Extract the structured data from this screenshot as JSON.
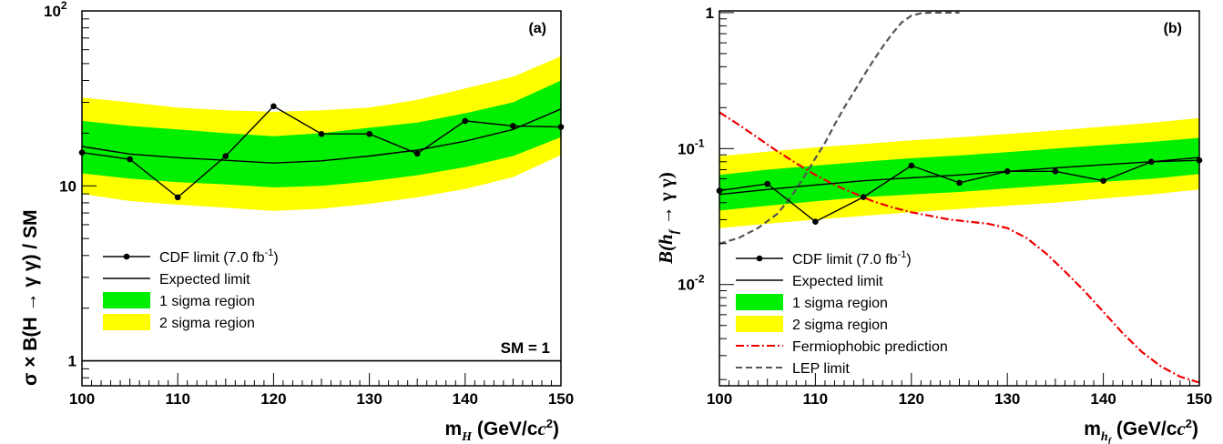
{
  "chart_data": [
    {
      "panel": "(a)",
      "type": "line",
      "xlabel_main": "m",
      "xlabel_sub": "H",
      "xlabel_units": " (GeV/c",
      "xlabel_sup": "2",
      "xlabel_close": ")",
      "ylabel": "σ × B(H → γ γ) / SM",
      "xlim": [
        100,
        150
      ],
      "ylim": [
        0.72,
        100
      ],
      "yscale": "log",
      "x_ticks": [
        100,
        110,
        120,
        130,
        140,
        150
      ],
      "y_ticks": [
        {
          "value": 1,
          "label": "1"
        },
        {
          "value": 10,
          "label": "10"
        },
        {
          "value": 100,
          "label": "10",
          "sup": "2"
        }
      ],
      "annotation": "SM = 1",
      "sm_line": 1,
      "x": [
        100,
        105,
        110,
        115,
        120,
        125,
        130,
        135,
        140,
        145,
        150
      ],
      "observed": [
        15.5,
        14.2,
        8.6,
        14.8,
        28.5,
        19.8,
        19.8,
        15.3,
        23.5,
        22.0,
        21.7
      ],
      "expected": [
        16.8,
        15.2,
        14.5,
        14.0,
        13.5,
        13.9,
        14.8,
        16.0,
        18.0,
        21.0,
        27.5
      ],
      "band1_lo": [
        11.8,
        11.0,
        10.5,
        10.2,
        9.8,
        10.0,
        10.6,
        11.5,
        12.8,
        14.8,
        19.0
      ],
      "band1_hi": [
        23.5,
        22.0,
        21.0,
        20.0,
        19.2,
        20.0,
        21.5,
        23.0,
        26.0,
        30.0,
        40.0
      ],
      "band2_lo": [
        9.0,
        8.2,
        7.8,
        7.5,
        7.2,
        7.4,
        7.9,
        8.6,
        9.6,
        11.2,
        15.0
      ],
      "band2_hi": [
        32.0,
        30.0,
        28.0,
        27.0,
        26.5,
        27.0,
        28.0,
        31.0,
        36.0,
        42.0,
        55.0
      ],
      "legend": [
        {
          "label": "CDF limit (7.0 fb",
          "sup": "-1",
          "close": ")",
          "kind": "observed"
        },
        {
          "label": "Expected limit",
          "kind": "expected"
        },
        {
          "label": "1 sigma region",
          "kind": "band1"
        },
        {
          "label": "2 sigma region",
          "kind": "band2"
        }
      ]
    },
    {
      "panel": "(b)",
      "type": "line",
      "xlabel_main": "m",
      "xlabel_sub": "h",
      "xlabel_subsub": "f",
      "xlabel_units": " (GeV/c",
      "xlabel_sup": "2",
      "xlabel_close": ")",
      "ylabel": "B(h",
      "ylabel_sub": "f",
      "ylabel_rest": " → γ γ)",
      "xlim": [
        100,
        150
      ],
      "ylim": [
        0.0018,
        1.03
      ],
      "yscale": "log",
      "x_ticks": [
        100,
        110,
        120,
        130,
        140,
        150
      ],
      "y_ticks": [
        {
          "value": 0.01,
          "label": "10",
          "sup": "-2"
        },
        {
          "value": 0.1,
          "label": "10",
          "sup": "-1"
        },
        {
          "value": 1,
          "label": "1"
        }
      ],
      "x": [
        100,
        105,
        110,
        115,
        120,
        125,
        130,
        135,
        140,
        145,
        150
      ],
      "observed": [
        0.049,
        0.055,
        0.029,
        0.044,
        0.075,
        0.056,
        0.068,
        0.068,
        0.058,
        0.08,
        0.082
      ],
      "expected": [
        0.046,
        0.05,
        0.054,
        0.058,
        0.061,
        0.064,
        0.068,
        0.072,
        0.076,
        0.08,
        0.086
      ],
      "band1_lo": [
        0.035,
        0.038,
        0.041,
        0.044,
        0.046,
        0.048,
        0.051,
        0.054,
        0.057,
        0.06,
        0.065
      ],
      "band1_hi": [
        0.064,
        0.07,
        0.075,
        0.08,
        0.085,
        0.089,
        0.094,
        0.1,
        0.106,
        0.112,
        0.12
      ],
      "band2_lo": [
        0.026,
        0.028,
        0.03,
        0.032,
        0.034,
        0.036,
        0.038,
        0.04,
        0.043,
        0.046,
        0.05
      ],
      "band2_hi": [
        0.088,
        0.095,
        0.102,
        0.108,
        0.115,
        0.121,
        0.128,
        0.136,
        0.145,
        0.155,
        0.168
      ],
      "fermiophobic": {
        "x": [
          100,
          102,
          104,
          106,
          108,
          110,
          112,
          114,
          116,
          118,
          120,
          122,
          124,
          126,
          128,
          130,
          132,
          134,
          136,
          138,
          140,
          142,
          144,
          146,
          148,
          150
        ],
        "y": [
          0.185,
          0.15,
          0.12,
          0.096,
          0.078,
          0.064,
          0.054,
          0.047,
          0.041,
          0.037,
          0.034,
          0.032,
          0.03,
          0.029,
          0.028,
          0.026,
          0.022,
          0.017,
          0.0125,
          0.009,
          0.0063,
          0.0044,
          0.0032,
          0.0025,
          0.0021,
          0.0019
        ]
      },
      "lep": {
        "x": [
          100,
          102,
          104,
          106,
          107,
          108,
          109,
          110,
          111,
          112,
          113,
          114,
          115,
          116,
          117,
          118,
          119,
          120,
          121,
          122,
          123,
          125
        ],
        "y": [
          0.02,
          0.022,
          0.026,
          0.033,
          0.04,
          0.05,
          0.065,
          0.085,
          0.11,
          0.15,
          0.2,
          0.26,
          0.34,
          0.44,
          0.56,
          0.7,
          0.85,
          0.95,
          0.99,
          1.0,
          1.0,
          1.0
        ]
      },
      "legend": [
        {
          "label": "CDF limit (7.0 fb",
          "sup": "-1",
          "close": ")",
          "kind": "observed"
        },
        {
          "label": "Expected limit",
          "kind": "expected"
        },
        {
          "label": "1 sigma region",
          "kind": "band1"
        },
        {
          "label": "2 sigma region",
          "kind": "band2"
        },
        {
          "label": "Fermiophobic prediction",
          "kind": "fermiophobic"
        },
        {
          "label": "LEP limit",
          "kind": "lep"
        }
      ]
    }
  ],
  "colors": {
    "band1": "#00ee00",
    "band2": "#ffff00",
    "fermiophobic": "#ee0000",
    "lep": "#555555",
    "line": "#000000"
  }
}
